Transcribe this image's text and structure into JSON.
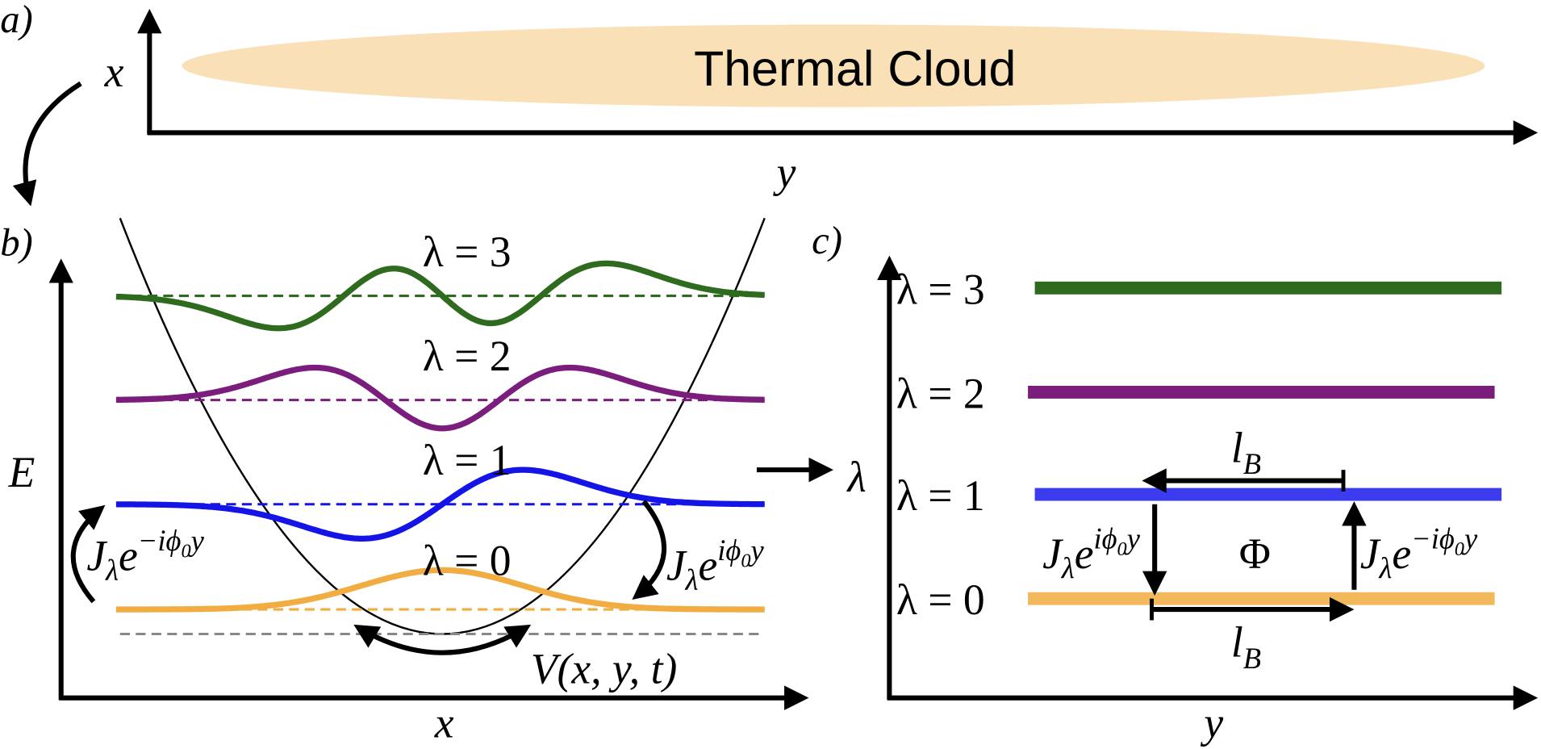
{
  "panel_labels": {
    "a": "a)",
    "b": "b)",
    "c": "c)"
  },
  "panel_a": {
    "vertical_axis": "x",
    "horizontal_axis": "y",
    "cloud": "Thermal Cloud"
  },
  "panel_b": {
    "vertical_axis": "E",
    "horizontal_axis": "x",
    "levels": [
      "λ = 0",
      "λ = 1",
      "λ = 2",
      "λ = 3"
    ],
    "hop_up": {
      "J": "J",
      "sub": "λ",
      "e": "e",
      "exp": "−iϕ",
      "exp_sub": "0",
      "exp_end": "y"
    },
    "hop_down": {
      "J": "J",
      "sub": "λ",
      "e": "e",
      "exp": "iϕ",
      "exp_sub": "0",
      "exp_end": "y"
    },
    "potential": "V(x, y, t)"
  },
  "panel_c": {
    "vertical_axis": "λ",
    "horizontal_axis": "y",
    "levels": [
      "λ = 0",
      "λ = 1",
      "λ = 2",
      "λ = 3"
    ],
    "hop_down": {
      "J": "J",
      "sub": "λ",
      "e": "e",
      "exp": "iϕ",
      "exp_sub": "0",
      "exp_end": "y"
    },
    "hop_up": {
      "J": "J",
      "sub": "λ",
      "e": "e",
      "exp": "−iϕ",
      "exp_sub": "0",
      "exp_end": "y"
    },
    "flux": "Φ",
    "length_top": {
      "l": "l",
      "sub": "B"
    },
    "length_bottom": {
      "l": "l",
      "sub": "B"
    }
  }
}
